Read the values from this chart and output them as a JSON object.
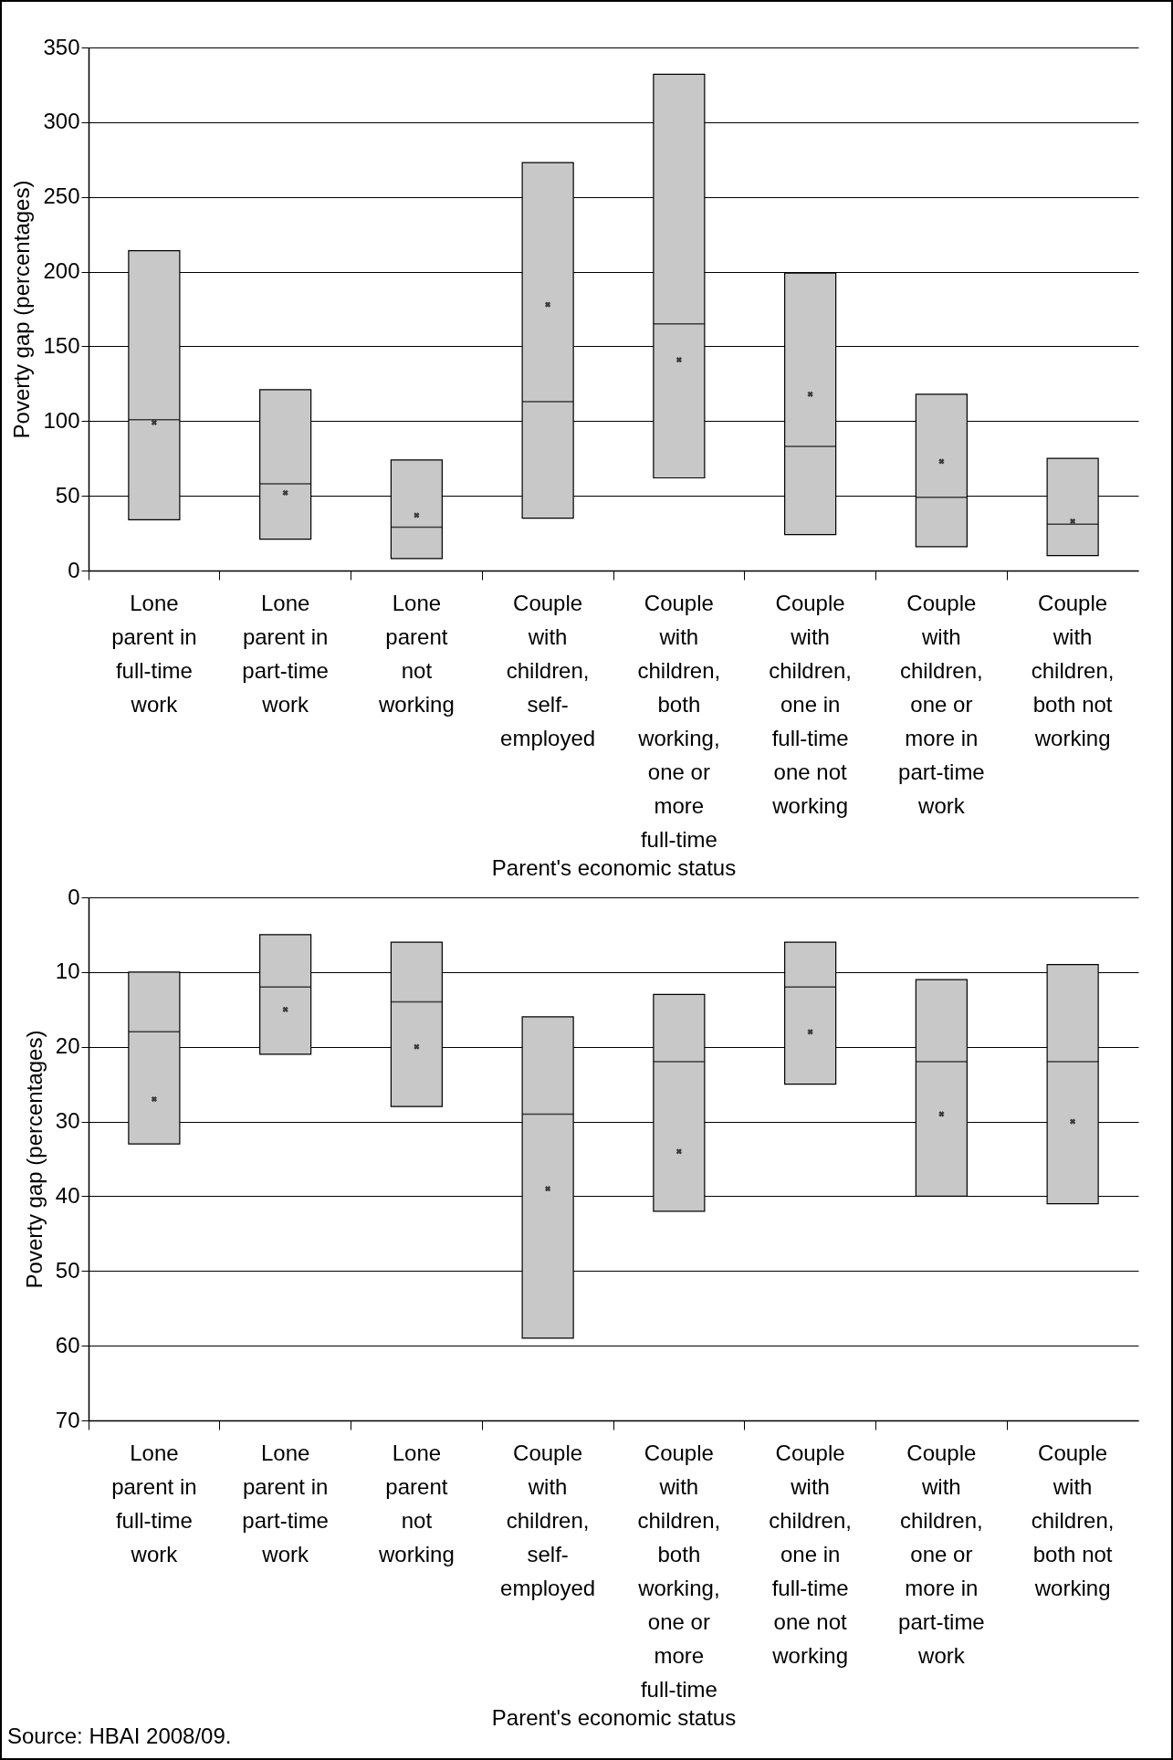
{
  "chart_data": [
    {
      "type": "box",
      "ylabel": "Poverty gap (percentages)",
      "xlabel": "Parent's economic status",
      "categories": [
        "Lone parent in full-time work",
        "Lone parent in part-time work",
        "Lone parent not working",
        "Couple with children, self-employed",
        "Couple with children, both working, one or more full-time",
        "Couple with children, one in full-time one not working",
        "Couple with children, one or more in part-time work",
        "Couple with children, both not working"
      ],
      "boxes": [
        {
          "low": 34,
          "q1": 34,
          "median": 101,
          "q3": 214,
          "high": 214,
          "mean": 99
        },
        {
          "low": 21,
          "q1": 21,
          "median": 58,
          "q3": 121,
          "high": 121,
          "mean": 52
        },
        {
          "low": 8,
          "q1": 8,
          "median": 29,
          "q3": 74,
          "high": 74,
          "mean": 37
        },
        {
          "low": 35,
          "q1": 35,
          "median": 113,
          "q3": 273,
          "high": 273,
          "mean": 178
        },
        {
          "low": 62,
          "q1": 62,
          "median": 165,
          "q3": 332,
          "high": 332,
          "mean": 141
        },
        {
          "low": 24,
          "q1": 24,
          "median": 83,
          "q3": 199,
          "high": 199,
          "mean": 118
        },
        {
          "low": 16,
          "q1": 16,
          "median": 49,
          "q3": 118,
          "high": 118,
          "mean": 73
        },
        {
          "low": 10,
          "q1": 10,
          "median": 31,
          "q3": 75,
          "high": 75,
          "mean": 33
        }
      ],
      "color": "#c8c8c8",
      "ylim": [
        0,
        350
      ],
      "yticks": [
        0,
        50,
        100,
        150,
        200,
        250,
        300,
        350
      ],
      "grid": "y",
      "marker": "cross"
    },
    {
      "type": "box",
      "ylabel": "Poverty gap (percentages)",
      "xlabel": "Parent's economic status",
      "categories": [
        "Lone parent in full-time work",
        "Lone parent in part-time work",
        "Lone parent not working",
        "Couple with children, self-employed",
        "Couple with children, both working, one or more full-time",
        "Couple with children, one in full-time one not working",
        "Couple with children, one or more in part-time work",
        "Couple with children, both not working"
      ],
      "boxes": [
        {
          "low": 10,
          "q1": 10,
          "median": 18,
          "q3": 33,
          "high": 33,
          "mean": 27
        },
        {
          "low": 5,
          "q1": 5,
          "median": 12,
          "q3": 21,
          "high": 21,
          "mean": 15
        },
        {
          "low": 6,
          "q1": 6,
          "median": 14,
          "q3": 28,
          "high": 28,
          "mean": 20
        },
        {
          "low": 16,
          "q1": 16,
          "median": 29,
          "q3": 59,
          "high": 59,
          "mean": 39
        },
        {
          "low": 13,
          "q1": 13,
          "median": 22,
          "q3": 42,
          "high": 42,
          "mean": 34
        },
        {
          "low": 6,
          "q1": 6,
          "median": 12,
          "q3": 25,
          "high": 25,
          "mean": 18
        },
        {
          "low": 11,
          "q1": 11,
          "median": 22,
          "q3": 40,
          "high": 40,
          "mean": 29
        },
        {
          "low": 9,
          "q1": 9,
          "median": 22,
          "q3": 41,
          "high": 41,
          "mean": 30
        }
      ],
      "color": "#c8c8c8",
      "ylim": [
        70,
        0
      ],
      "yticks": [
        0,
        10,
        20,
        30,
        40,
        50,
        60,
        70
      ],
      "grid": "y",
      "marker": "cross",
      "annotations": [
        "Source: HBAI 2008/09."
      ]
    }
  ]
}
